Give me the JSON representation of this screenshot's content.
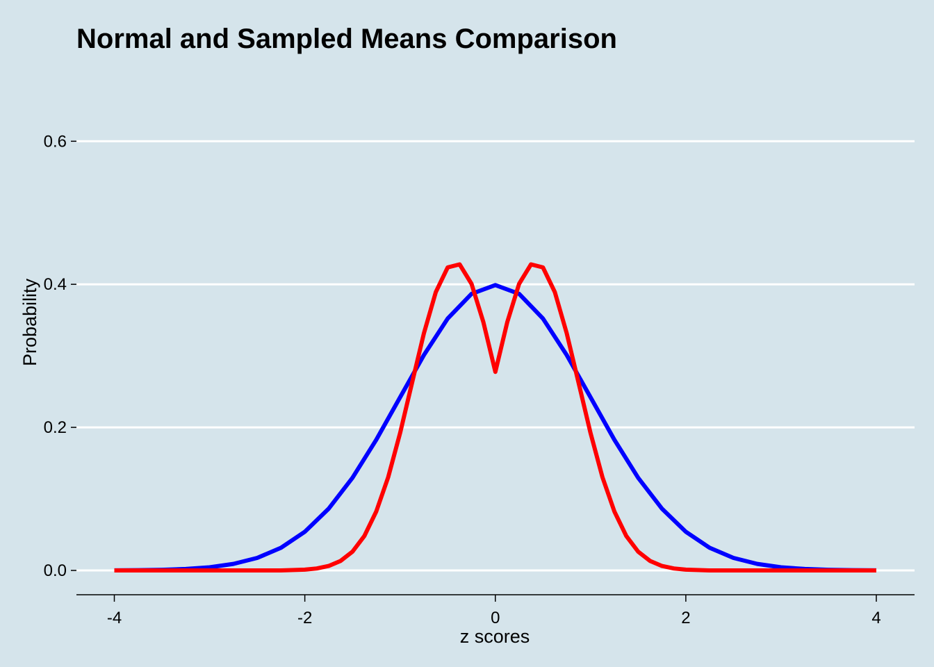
{
  "chart_data": {
    "type": "line",
    "title": "Normal and Sampled Means Comparison",
    "xlabel": "z scores",
    "ylabel": "Probability",
    "xlim": [
      -4,
      4
    ],
    "ylim": [
      -0.034,
      0.69
    ],
    "x_ticks": [
      -4,
      -2,
      0,
      2,
      4
    ],
    "y_ticks": [
      0.0,
      0.2,
      0.4,
      0.6
    ],
    "x_tick_labels": [
      "-4",
      "-2",
      "0",
      "2",
      "4"
    ],
    "y_tick_labels": [
      "0.0",
      "0.2",
      "0.4",
      "0.6"
    ],
    "grid": "horizontal",
    "legend": "none",
    "background_color": "#d5e4eb",
    "series": [
      {
        "color": "#0000ff",
        "x": [
          -4.0,
          -3.75,
          -3.5,
          -3.25,
          -3.0,
          -2.75,
          -2.5,
          -2.25,
          -2.0,
          -1.75,
          -1.5,
          -1.25,
          -1.0,
          -0.75,
          -0.5,
          -0.25,
          0.0,
          0.25,
          0.5,
          0.75,
          1.0,
          1.25,
          1.5,
          1.75,
          2.0,
          2.25,
          2.5,
          2.75,
          3.0,
          3.25,
          3.5,
          3.75,
          4.0
        ],
        "y": [
          0.0001,
          0.0004,
          0.0009,
          0.002,
          0.0044,
          0.0091,
          0.0175,
          0.0317,
          0.054,
          0.0863,
          0.1295,
          0.1826,
          0.242,
          0.3011,
          0.3521,
          0.3867,
          0.3989,
          0.3867,
          0.3521,
          0.3011,
          0.242,
          0.1826,
          0.1295,
          0.0863,
          0.054,
          0.0317,
          0.0175,
          0.0091,
          0.0044,
          0.002,
          0.0009,
          0.0004,
          0.0001
        ]
      },
      {
        "color": "#ff0000",
        "x": [
          -4.0,
          -3.5,
          -3.0,
          -2.5,
          -2.25,
          -2.0,
          -1.875,
          -1.75,
          -1.625,
          -1.5,
          -1.375,
          -1.25,
          -1.125,
          -1.0,
          -0.875,
          -0.75,
          -0.625,
          -0.5,
          -0.375,
          -0.25,
          -0.125,
          0.0,
          0.125,
          0.25,
          0.375,
          0.5,
          0.625,
          0.75,
          0.875,
          1.0,
          1.125,
          1.25,
          1.375,
          1.5,
          1.625,
          1.75,
          1.875,
          2.0,
          2.25,
          2.5,
          3.0,
          3.5,
          4.0
        ],
        "y": [
          0.0,
          0.0,
          0.0,
          0.0,
          0.0,
          0.0011,
          0.0027,
          0.0062,
          0.0132,
          0.0262,
          0.0482,
          0.0824,
          0.1304,
          0.1919,
          0.2618,
          0.3315,
          0.3891,
          0.4236,
          0.4279,
          0.4007,
          0.347,
          0.2776,
          0.347,
          0.4007,
          0.4279,
          0.4236,
          0.3891,
          0.3315,
          0.2618,
          0.1919,
          0.1304,
          0.0824,
          0.0482,
          0.0262,
          0.0132,
          0.0062,
          0.0027,
          0.0011,
          0.0,
          0.0,
          0.0,
          0.0,
          0.0
        ]
      }
    ]
  }
}
